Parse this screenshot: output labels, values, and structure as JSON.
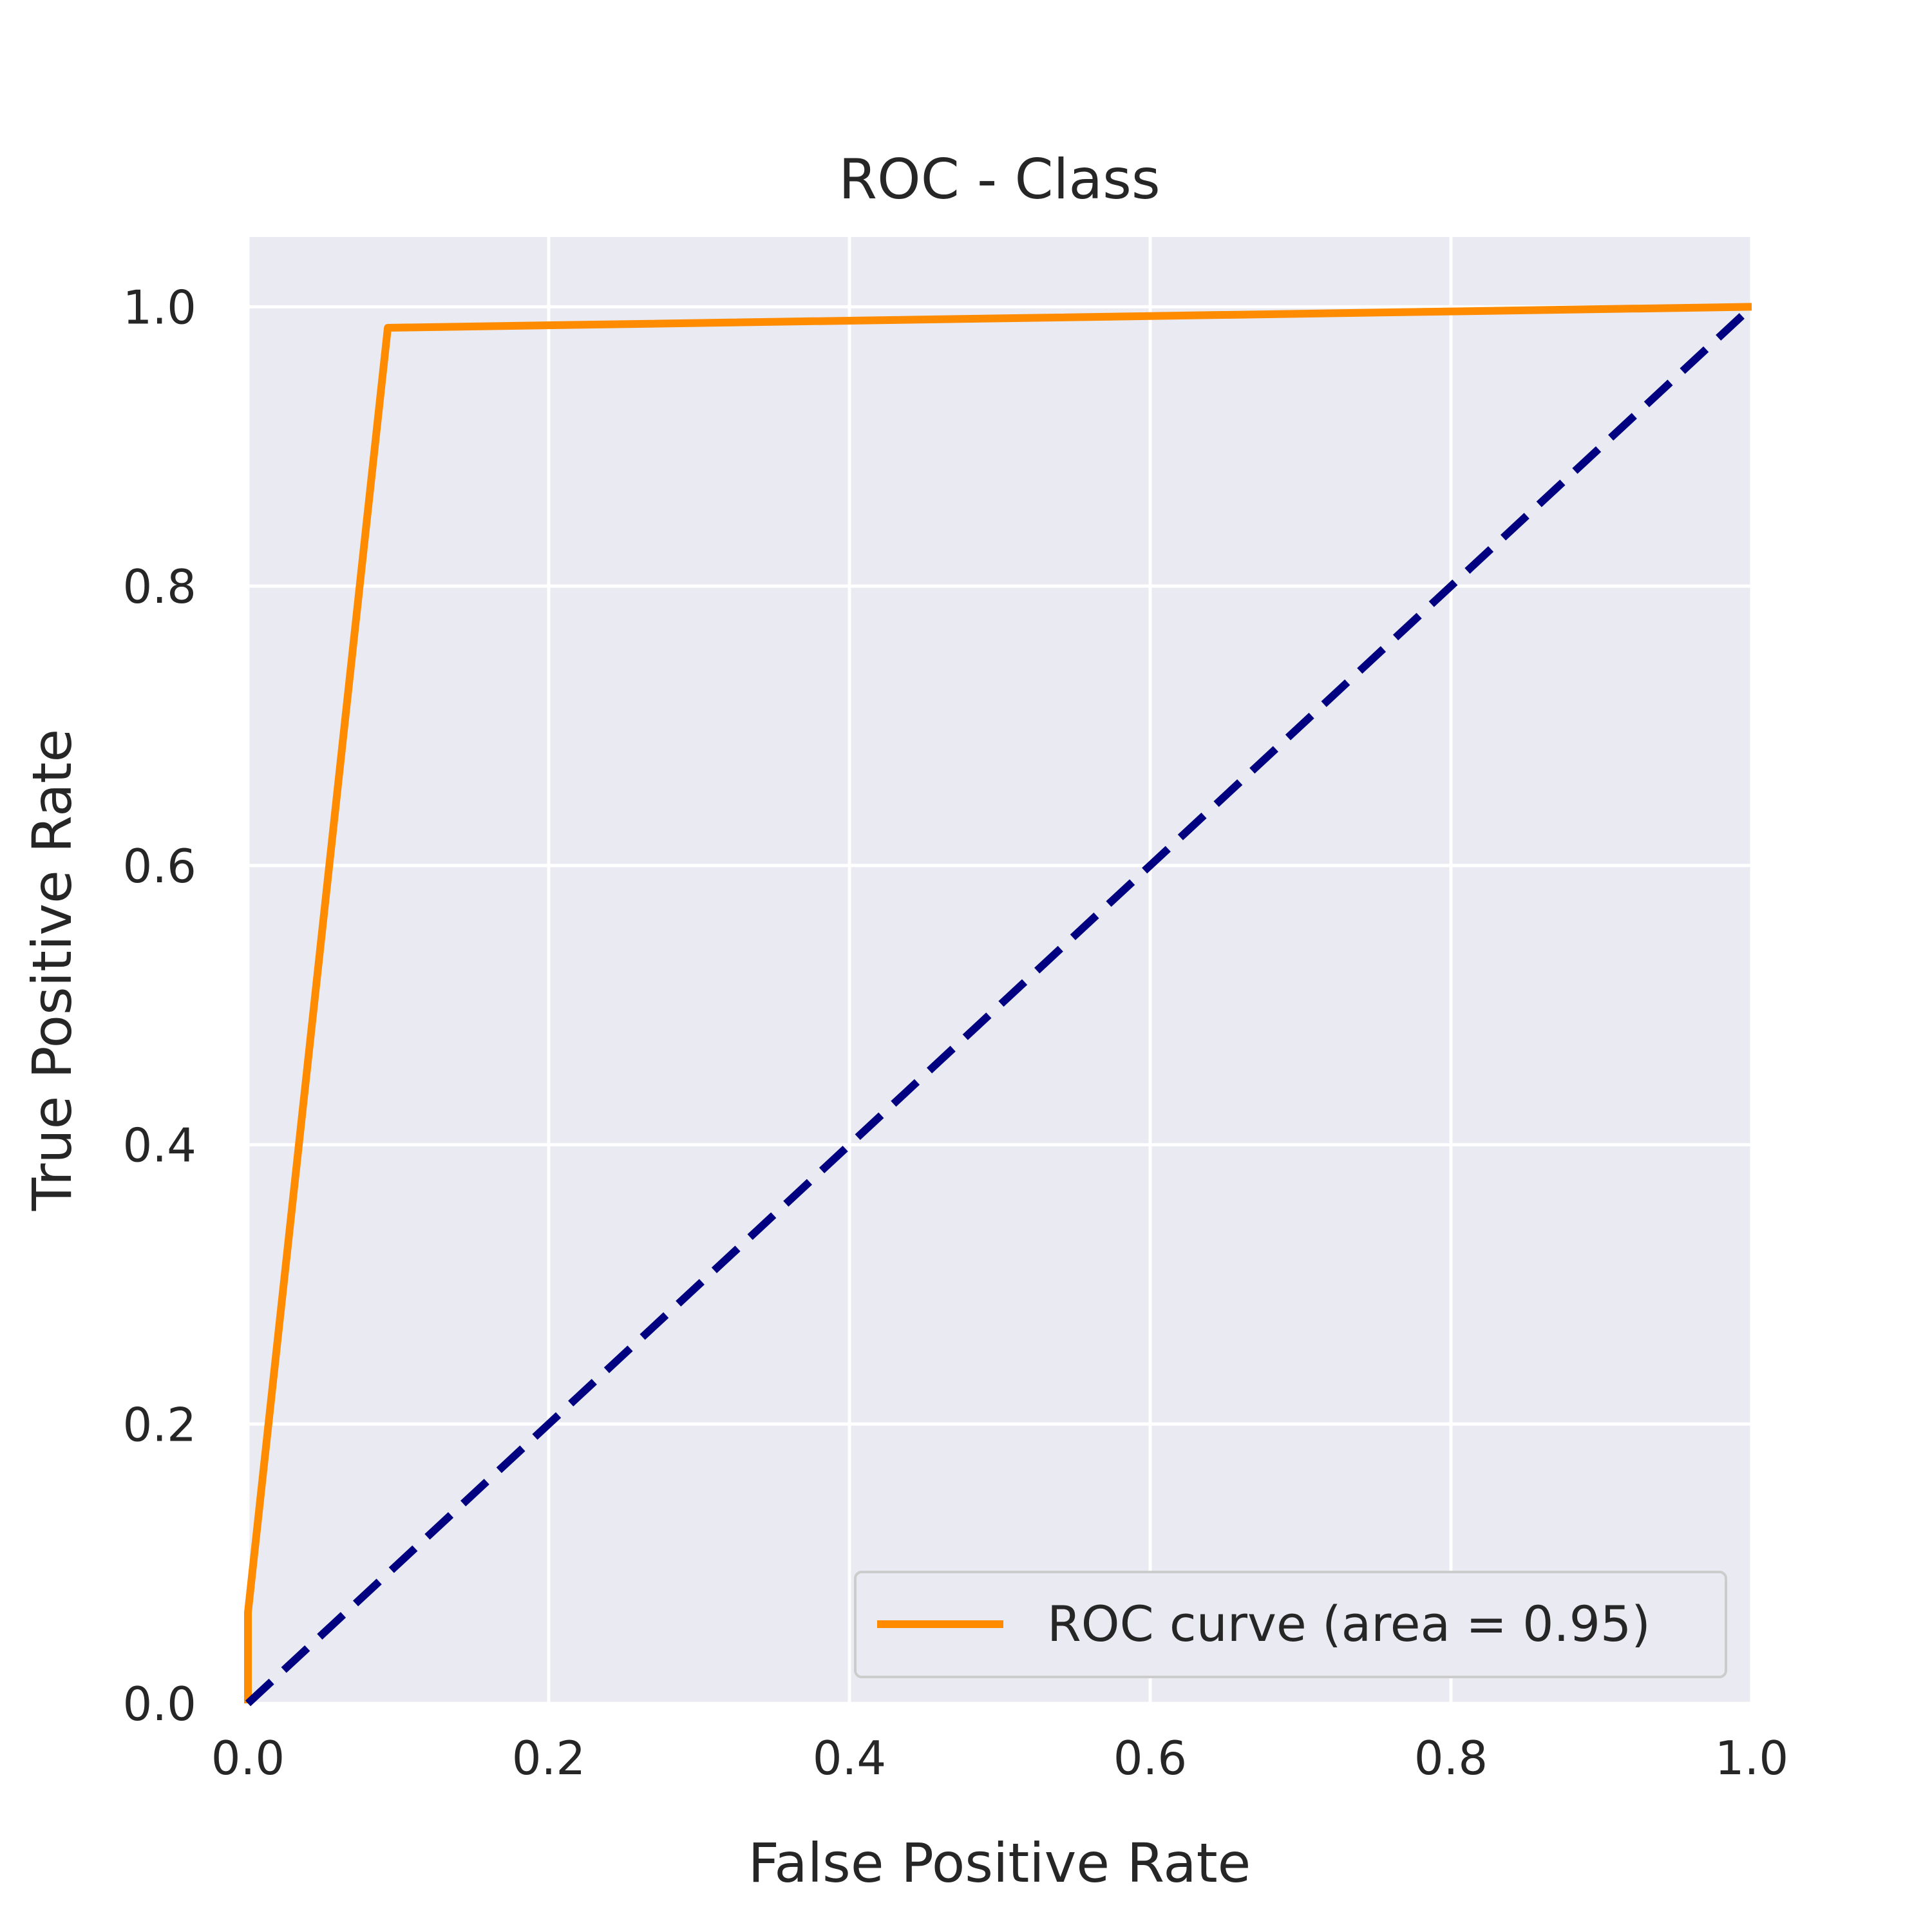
{
  "chart_data": {
    "type": "line",
    "title": "ROC - Class",
    "xlabel": "False Positive Rate",
    "ylabel": "True Positive Rate",
    "xlim": [
      0.0,
      1.0
    ],
    "ylim": [
      0.0,
      1.05
    ],
    "xticks": [
      "0.0",
      "0.2",
      "0.4",
      "0.6",
      "0.8",
      "1.0"
    ],
    "yticks": [
      "0.0",
      "0.2",
      "0.4",
      "0.6",
      "0.8",
      "1.0"
    ],
    "grid": true,
    "legend_position": "lower-right",
    "series": [
      {
        "name": "ROC curve (area = 0.95)",
        "color": "#ff8c00",
        "style": "solid",
        "x": [
          0.0,
          0.0,
          0.093,
          1.0
        ],
        "y": [
          0.0,
          0.065,
          0.985,
          1.0
        ]
      },
      {
        "color": "#000080",
        "style": "dashed",
        "x": [
          0.0,
          1.0
        ],
        "y": [
          0.0,
          1.0
        ]
      }
    ],
    "colors": {
      "plot_background": "#eaeaf2",
      "grid": "#ffffff"
    }
  }
}
